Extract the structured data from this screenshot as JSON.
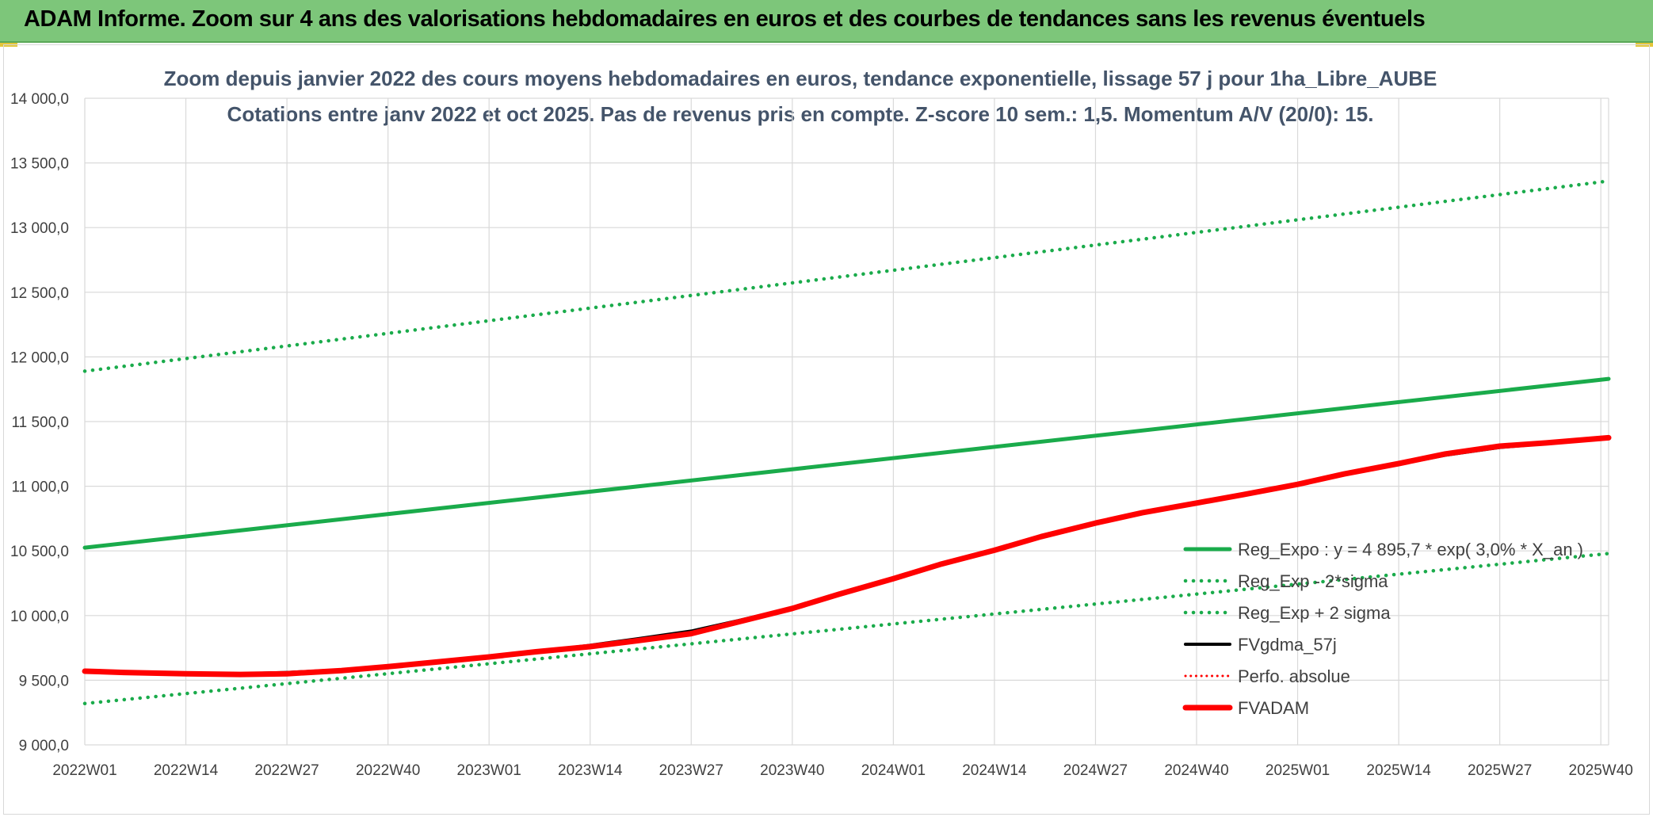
{
  "banner": {
    "title": "ADAM Informe. Zoom sur 4 ans des valorisations hebdomadaires en euros et des courbes de tendances sans les revenus éventuels"
  },
  "chart_data": {
    "type": "line",
    "title": "Zoom depuis janvier 2022 des cours moyens hebdomadaires en euros, tendance exponentielle, lissage 57 j pour 1ha_Libre_AUBE",
    "subtitle": "Cotations entre janv 2022 et oct 2025. Pas de revenus pris en compte. Z-score 10 sem.: 1,5. Momentum A/V (20/0): 15.",
    "xlabel": "",
    "ylabel": "",
    "ylim": [
      9000,
      14000
    ],
    "yticks": [
      9000,
      9500,
      10000,
      10500,
      11000,
      11500,
      12000,
      12500,
      13000,
      13500,
      14000
    ],
    "ytick_labels": [
      "9 000,0",
      "9 500,0",
      "10 000,0",
      "10 500,0",
      "11 000,0",
      "11 500,0",
      "12 000,0",
      "12 500,0",
      "13 000,0",
      "13 500,0",
      "14 000,0"
    ],
    "x_index_range": [
      0,
      196
    ],
    "xtick_index": [
      0,
      13,
      26,
      39,
      52,
      65,
      78,
      91,
      104,
      117,
      130,
      143,
      156,
      169,
      182,
      195
    ],
    "xtick_labels": [
      "2022W01",
      "2022W14",
      "2022W27",
      "2022W40",
      "2023W01",
      "2023W14",
      "2023W27",
      "2023W40",
      "2024W01",
      "2024W14",
      "2024W27",
      "2024W40",
      "2025W01",
      "2025W14",
      "2025W27",
      "2025W40"
    ],
    "grid": true,
    "legend_position": "lower-right",
    "series": [
      {
        "name": "Reg_Expo : y = 4 895,7 * exp( 3,0% * X_an )",
        "style": "solid",
        "color": "#1aab4b",
        "width": 5,
        "points": [
          [
            0,
            10525
          ],
          [
            196,
            11830
          ]
        ]
      },
      {
        "name": "Reg_Exp - 2*sigma",
        "style": "dotted",
        "color": "#1aab4b",
        "width": 4.5,
        "points": [
          [
            0,
            9320
          ],
          [
            196,
            10480
          ]
        ]
      },
      {
        "name": "Reg_Exp + 2 sigma",
        "style": "dotted",
        "color": "#1aab4b",
        "width": 4.5,
        "points": [
          [
            0,
            11890
          ],
          [
            196,
            13360
          ]
        ]
      },
      {
        "name": "FVgdma_57j",
        "style": "solid",
        "color": "#000000",
        "width": 4,
        "points": [
          [
            0,
            9570
          ],
          [
            5,
            9560
          ],
          [
            13,
            9550
          ],
          [
            20,
            9550
          ],
          [
            26,
            9560
          ],
          [
            33,
            9580
          ],
          [
            39,
            9610
          ],
          [
            45,
            9640
          ],
          [
            52,
            9680
          ],
          [
            58,
            9720
          ],
          [
            65,
            9770
          ],
          [
            71,
            9820
          ],
          [
            78,
            9880
          ],
          [
            84,
            9960
          ],
          [
            91,
            10060
          ],
          [
            97,
            10170
          ],
          [
            104,
            10290
          ],
          [
            110,
            10400
          ],
          [
            117,
            10510
          ],
          [
            123,
            10610
          ],
          [
            130,
            10710
          ],
          [
            136,
            10790
          ],
          [
            143,
            10870
          ],
          [
            149,
            10930
          ],
          [
            156,
            11010
          ],
          [
            162,
            11090
          ],
          [
            169,
            11170
          ],
          [
            175,
            11240
          ],
          [
            182,
            11300
          ],
          [
            188,
            11330
          ],
          [
            196,
            11370
          ]
        ]
      },
      {
        "name": "Perfo. absolue",
        "style": "dotted",
        "color": "#ff0000",
        "width": 3,
        "points": []
      },
      {
        "name": "FVADAM",
        "style": "solid",
        "color": "#ff0000",
        "width": 7,
        "points": [
          [
            0,
            9570
          ],
          [
            5,
            9560
          ],
          [
            13,
            9550
          ],
          [
            20,
            9545
          ],
          [
            26,
            9550
          ],
          [
            33,
            9575
          ],
          [
            39,
            9605
          ],
          [
            45,
            9640
          ],
          [
            52,
            9680
          ],
          [
            58,
            9720
          ],
          [
            65,
            9760
          ],
          [
            71,
            9805
          ],
          [
            78,
            9860
          ],
          [
            84,
            9950
          ],
          [
            91,
            10055
          ],
          [
            97,
            10165
          ],
          [
            104,
            10285
          ],
          [
            110,
            10395
          ],
          [
            117,
            10505
          ],
          [
            123,
            10610
          ],
          [
            130,
            10715
          ],
          [
            136,
            10795
          ],
          [
            143,
            10870
          ],
          [
            149,
            10935
          ],
          [
            156,
            11015
          ],
          [
            162,
            11095
          ],
          [
            169,
            11175
          ],
          [
            175,
            11250
          ],
          [
            182,
            11310
          ],
          [
            188,
            11335
          ],
          [
            196,
            11375
          ]
        ]
      }
    ]
  }
}
